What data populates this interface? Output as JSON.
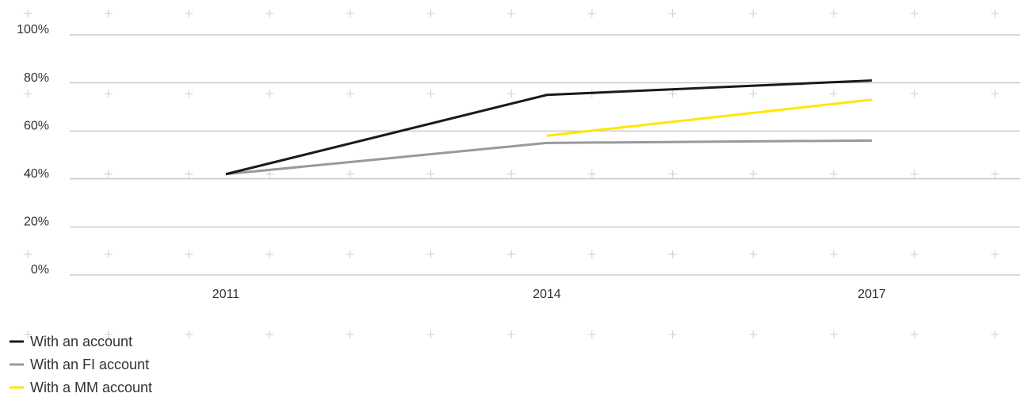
{
  "chart_data": {
    "type": "line",
    "categories": [
      "2011",
      "2014",
      "2017"
    ],
    "series": [
      {
        "name": "With an account",
        "color": "#1a1a1a",
        "values": [
          42,
          75,
          81
        ]
      },
      {
        "name": "With an FI account",
        "color": "#999999",
        "values": [
          42,
          55,
          56
        ]
      },
      {
        "name": "With a MM account",
        "color": "#ffe600",
        "values": [
          null,
          58,
          73
        ]
      }
    ],
    "ylim": [
      0,
      100
    ],
    "yticks": [
      {
        "value": 0,
        "label": "0%"
      },
      {
        "value": 20,
        "label": "20%"
      },
      {
        "value": 40,
        "label": "40%"
      },
      {
        "value": 60,
        "label": "60%"
      },
      {
        "value": 80,
        "label": "80%"
      },
      {
        "value": 100,
        "label": "100%"
      }
    ],
    "grid": true
  }
}
